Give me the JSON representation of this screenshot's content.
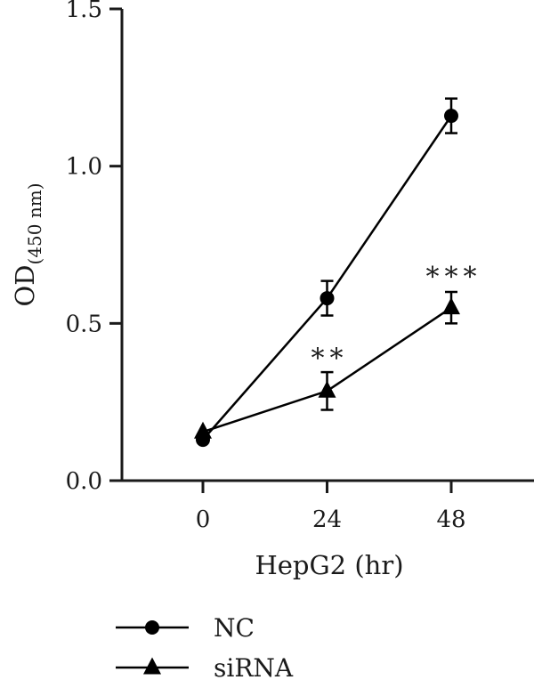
{
  "chart_data": {
    "type": "line",
    "xlabel": "HepG2 (hr)",
    "ylabel": {
      "main": "OD",
      "sub": "(450 nm)"
    },
    "x": [
      0,
      24,
      48
    ],
    "x_tick_labels": [
      "0",
      "24",
      "48"
    ],
    "ylim": [
      0,
      1.5
    ],
    "y_ticks": [
      0,
      0.5,
      1.0,
      1.5
    ],
    "y_tick_labels": [
      "0.0",
      "0.5",
      "1.0",
      "1.5"
    ],
    "grid": false,
    "legend_position": "bottom-left",
    "series": [
      {
        "name": "NC",
        "marker": "circle",
        "color": "#000000",
        "values": [
          0.13,
          0.58,
          1.16
        ],
        "errors": [
          0.0,
          0.055,
          0.055
        ]
      },
      {
        "name": "siRNA",
        "marker": "triangle",
        "color": "#000000",
        "values": [
          0.155,
          0.285,
          0.55
        ],
        "errors": [
          0.0,
          0.06,
          0.05
        ]
      }
    ],
    "annotations": [
      {
        "x": 24,
        "y": 0.4,
        "text": "**"
      },
      {
        "x": 48,
        "y": 0.66,
        "text": "***"
      }
    ]
  }
}
